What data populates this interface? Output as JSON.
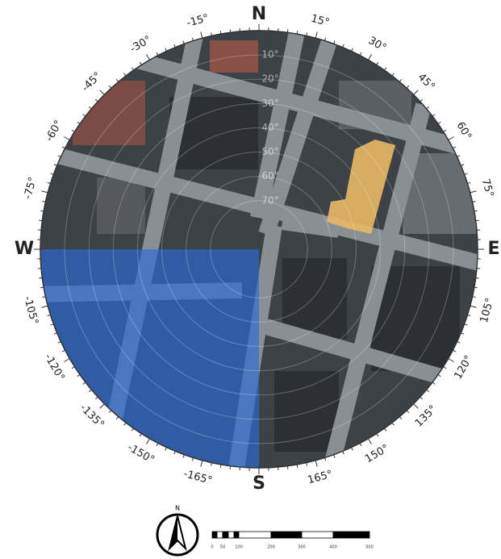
{
  "azimuth_labels": [
    "N",
    "15°",
    "30°",
    "45°",
    "60°",
    "75°",
    "E",
    "105°",
    "120°",
    "135°",
    "150°",
    "165°",
    "S",
    "-165°",
    "-150°",
    "-135°",
    "-120°",
    "-105°",
    "W",
    "-75°",
    "-60°",
    "-45°",
    "-30°",
    "-15°"
  ],
  "elevation_labels": [
    "10°",
    "20°",
    "30°",
    "40°",
    "50°",
    "60°",
    "70°"
  ],
  "north_arrow": {
    "label": "N"
  },
  "scale_bar": {
    "labels": [
      "0",
      "50",
      "100",
      "200",
      "300",
      "400",
      "500"
    ]
  }
}
